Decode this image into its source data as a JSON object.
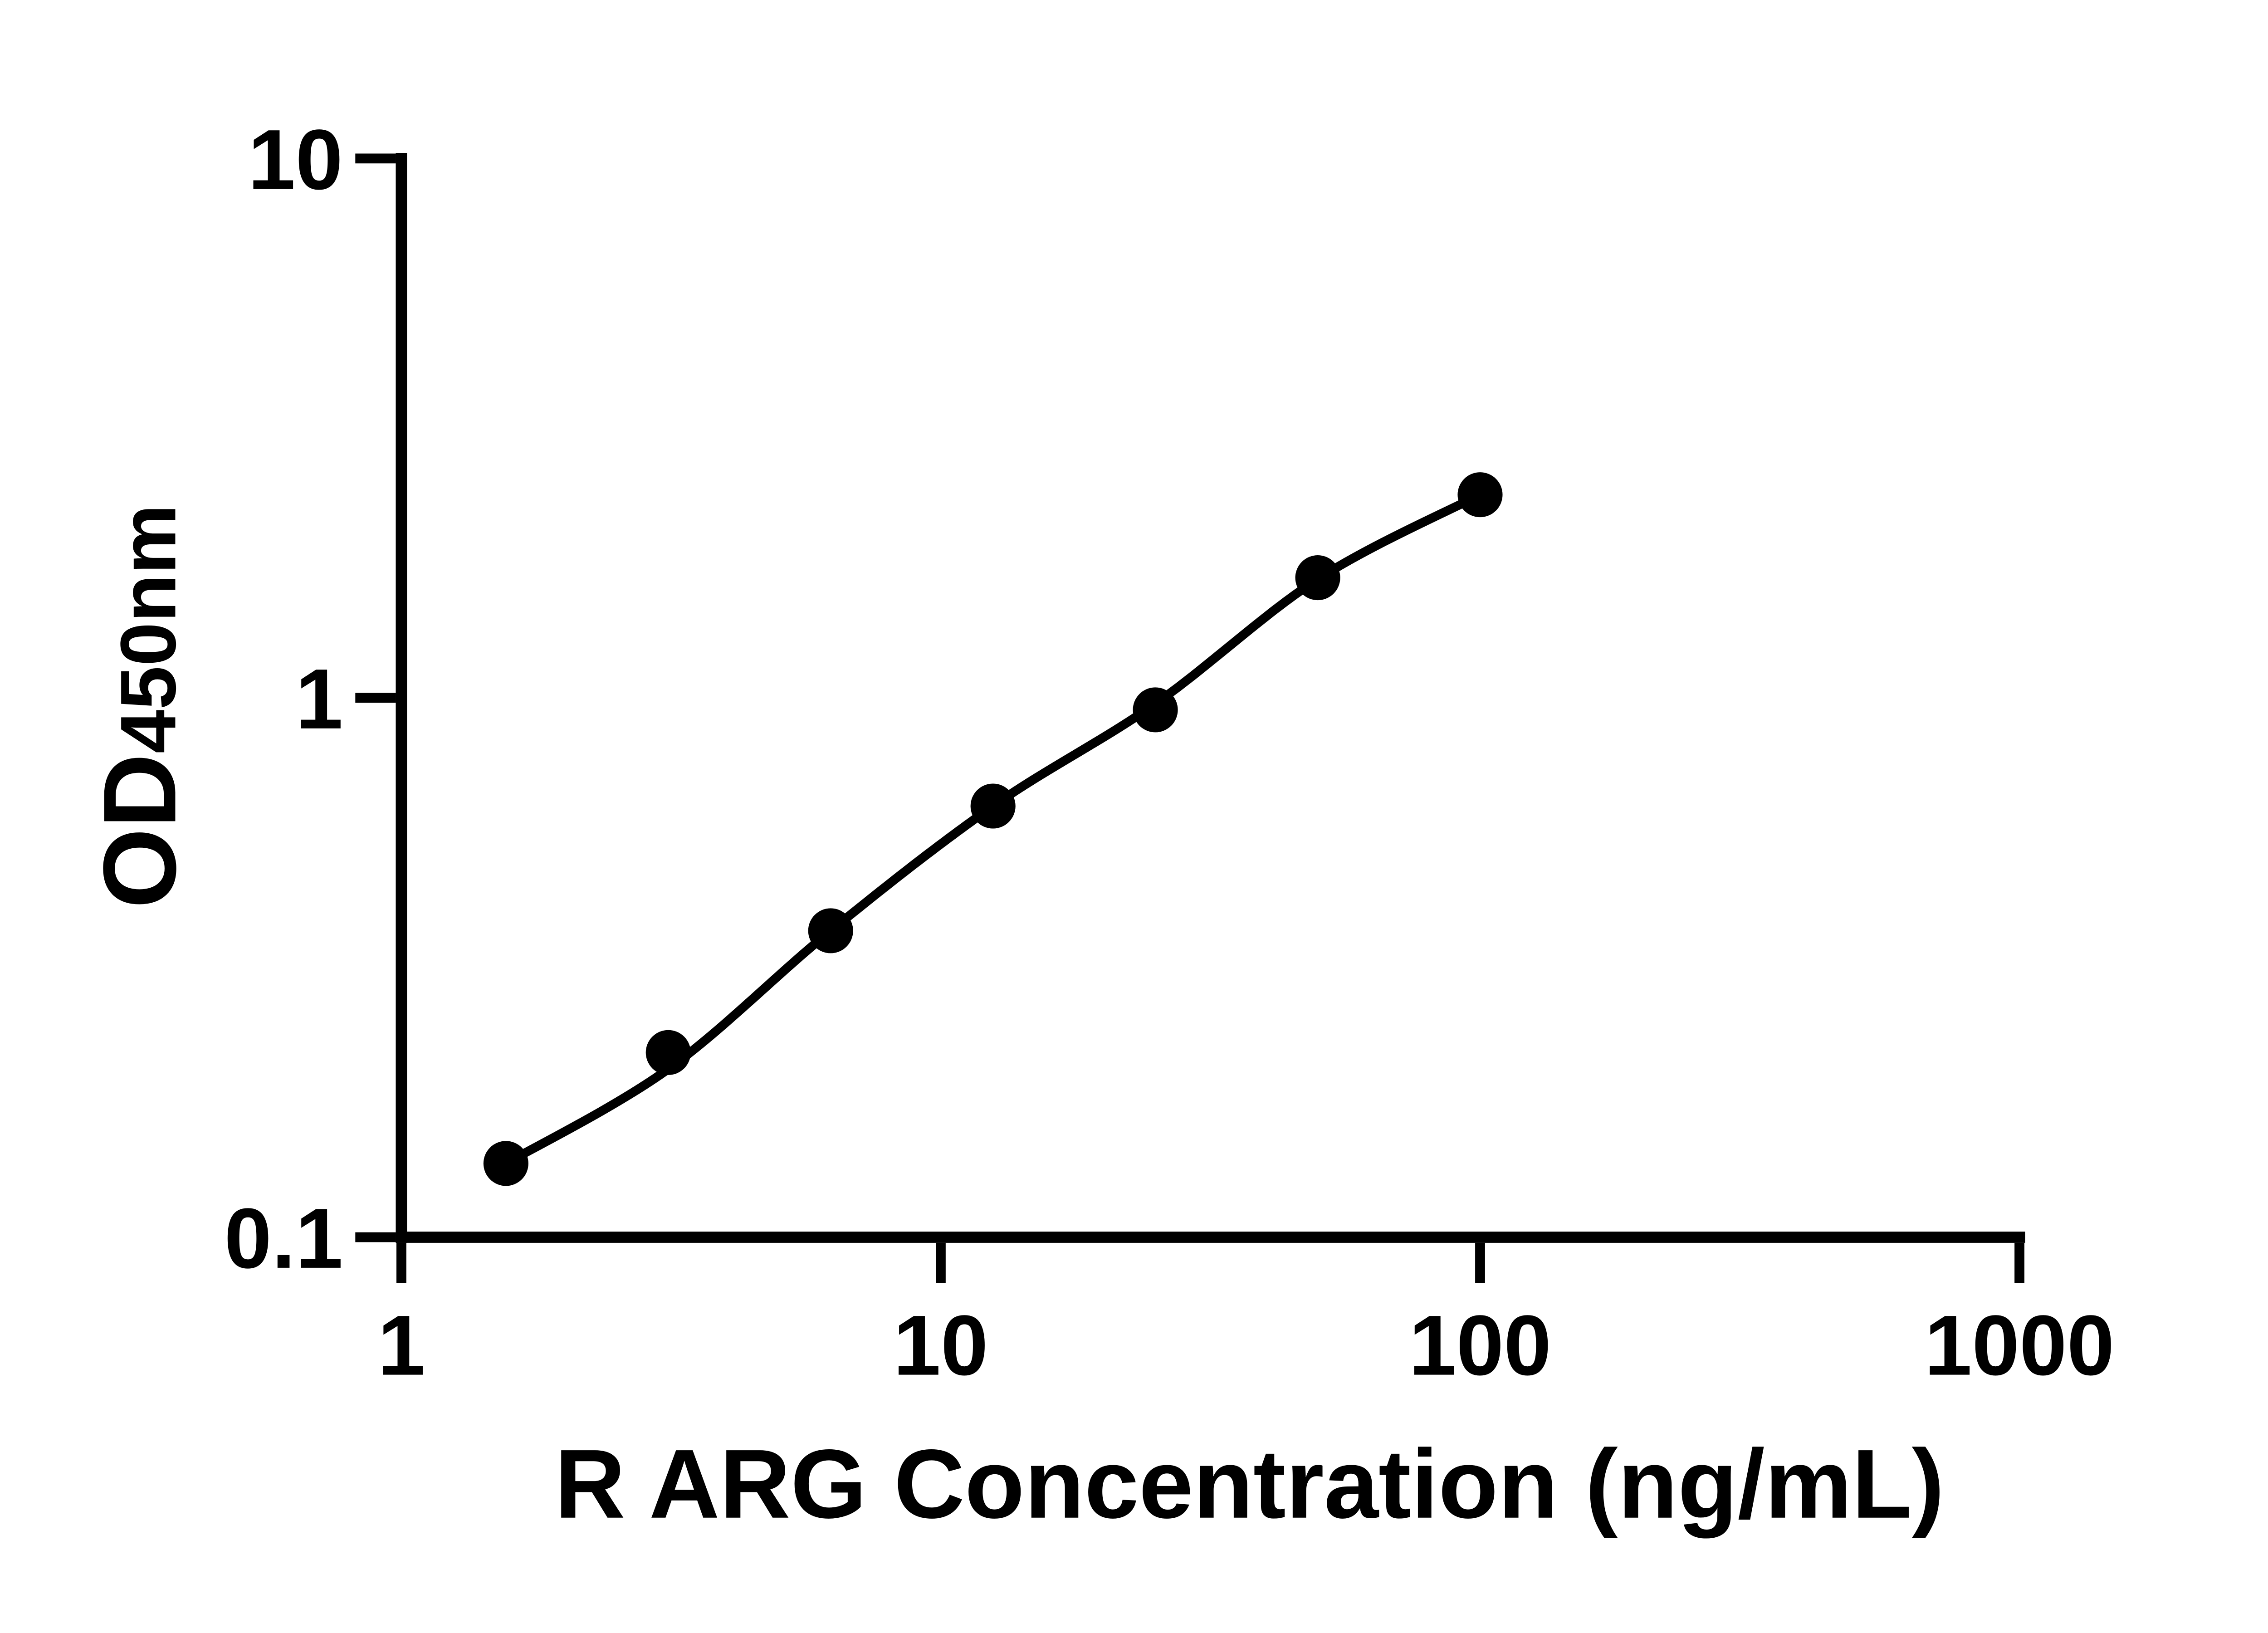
{
  "chart_data": {
    "type": "scatter",
    "title": "",
    "xlabel": "R ARG Concentration (ng/mL)",
    "ylabel_main": "OD",
    "ylabel_sub": "450nm",
    "x_scale": "log",
    "y_scale": "log",
    "xlim": [
      1,
      1000
    ],
    "ylim": [
      0.1,
      10
    ],
    "grid": false,
    "legend": "none",
    "x_ticks": [
      {
        "value": 1,
        "label": "1"
      },
      {
        "value": 10,
        "label": "10"
      },
      {
        "value": 100,
        "label": "100"
      },
      {
        "value": 1000,
        "label": "1000"
      }
    ],
    "y_ticks": [
      {
        "value": 10,
        "label": "10"
      },
      {
        "value": 1,
        "label": "1"
      },
      {
        "value": 0.1,
        "label": "0.1"
      }
    ],
    "series": [
      {
        "name": "standard-points",
        "kind": "scatter",
        "marker": "circle",
        "color": "#000000",
        "x": [
          1.5625,
          3.125,
          6.25,
          12.5,
          25,
          50,
          100
        ],
        "y": [
          0.137,
          0.22,
          0.37,
          0.63,
          0.95,
          1.67,
          2.38
        ]
      },
      {
        "name": "fit-curve",
        "kind": "line",
        "color": "#000000",
        "x": [
          1.5625,
          3.125,
          6.25,
          12.5,
          25,
          50,
          100
        ],
        "y": [
          0.137,
          0.205,
          0.37,
          0.63,
          0.975,
          1.66,
          2.38
        ]
      }
    ],
    "colors": {
      "axis": "#000000",
      "text": "#000000",
      "background": "#ffffff"
    }
  }
}
